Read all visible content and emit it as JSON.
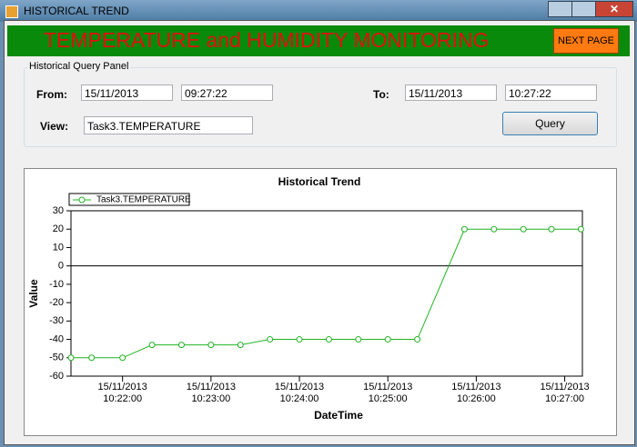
{
  "window": {
    "title": "HISTORICAL TREND"
  },
  "header": {
    "title": "TEMPERATURE and HUMIDITY MONITORING",
    "button": "NEXT PAGE"
  },
  "panel": {
    "title": "Historical Query Panel",
    "from": {
      "label": "From:",
      "date": "15/11/2013",
      "time": "09:27:22"
    },
    "to": {
      "label": "To:",
      "date": "15/11/2013",
      "time": "10:27:22"
    },
    "view": {
      "label": "View:",
      "value": "Task3.TEMPERATURE"
    },
    "button": "Query"
  },
  "chart_data": {
    "type": "line",
    "title": "Historical Trend",
    "x_label": "DateTime",
    "y_label": "Value",
    "x": [
      "2013-11-15T10:21:25",
      "2013-11-15T10:21:39",
      "2013-11-15T10:22:00",
      "2013-11-15T10:22:20",
      "2013-11-15T10:22:40",
      "2013-11-15T10:23:00",
      "2013-11-15T10:23:20",
      "2013-11-15T10:23:40",
      "2013-11-15T10:24:00",
      "2013-11-15T10:24:20",
      "2013-11-15T10:24:40",
      "2013-11-15T10:25:00",
      "2013-11-15T10:25:20",
      "2013-11-15T10:25:52",
      "2013-11-15T10:26:12",
      "2013-11-15T10:26:32",
      "2013-11-15T10:26:51",
      "2013-11-15T10:27:11"
    ],
    "series": [
      {
        "name": "Task3.TEMPERATURE",
        "color": "#22b422",
        "values": [
          -50,
          -50,
          -50,
          -43,
          -43,
          -43,
          -43,
          -40,
          -40,
          -40,
          -40,
          -40,
          -40,
          20,
          20,
          20,
          20,
          20
        ]
      }
    ],
    "xlim": [
      "2013-11-15T10:21:25",
      "2013-11-15T10:27:12"
    ],
    "xticks": [
      {
        "value": "2013-11-15T10:22:00",
        "label": "15/11/2013\n10:22:00"
      },
      {
        "value": "2013-11-15T10:23:00",
        "label": "15/11/2013\n10:23:00"
      },
      {
        "value": "2013-11-15T10:24:00",
        "label": "15/11/2013\n10:24:00"
      },
      {
        "value": "2013-11-15T10:25:00",
        "label": "15/11/2013\n10:25:00"
      },
      {
        "value": "2013-11-15T10:26:00",
        "label": "15/11/2013\n10:26:00"
      },
      {
        "value": "2013-11-15T10:27:00",
        "label": "15/11/2013\n10:27:00"
      }
    ],
    "ylim": [
      -60,
      30
    ],
    "yticks": [
      -60,
      -50,
      -40,
      -30,
      -20,
      -10,
      0,
      10,
      20,
      30
    ],
    "zero_line": true,
    "markers": "open-circle",
    "legend": "top-left"
  }
}
